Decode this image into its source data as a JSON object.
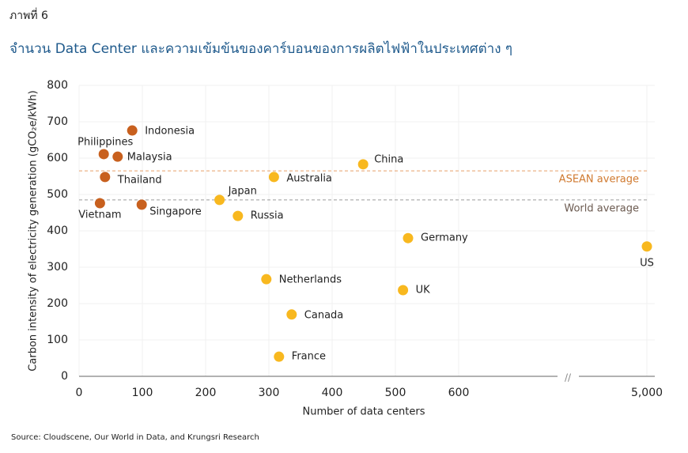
{
  "chart_data": {
    "type": "scatter",
    "figure_label": "ภาพที่ 6",
    "title": "จำนวน Data Center และความเข้มข้นของคาร์บอนของการผลิตไฟฟ้าในประเทศต่าง ๆ",
    "x_label": "Number of data centers",
    "y_label": "Carbon intensity of electricity generation (gCO₂e/kWh)",
    "source": "Source: Cloudscene, Our World in Data, and Krungsri Research",
    "xlim": [
      0,
      5050
    ],
    "x_break": [
      650,
      4950
    ],
    "x_break_label": "//",
    "ylim": [
      0,
      800
    ],
    "xticks": [
      0,
      100,
      200,
      300,
      400,
      500,
      600,
      {
        "value": 5000,
        "label": "5,000"
      }
    ],
    "yticks": [
      0,
      100,
      200,
      300,
      400,
      500,
      600,
      700,
      800
    ],
    "grid": true,
    "points": [
      {
        "label": "Indonesia",
        "x": 84,
        "y": 676,
        "color": "#c8601e"
      },
      {
        "label": "Philippines",
        "x": 39,
        "y": 611,
        "color": "#c8601e"
      },
      {
        "label": "Malaysia",
        "x": 61,
        "y": 604,
        "color": "#c8601e"
      },
      {
        "label": "Thailand",
        "x": 41,
        "y": 548,
        "color": "#c8601e"
      },
      {
        "label": "Vietnam",
        "x": 33,
        "y": 476,
        "color": "#c8601e"
      },
      {
        "label": "Singapore",
        "x": 99,
        "y": 472,
        "color": "#c8601e"
      },
      {
        "label": "Japan",
        "x": 222,
        "y": 485,
        "color": "#f8b81f"
      },
      {
        "label": "Russia",
        "x": 251,
        "y": 441,
        "color": "#f8b81f"
      },
      {
        "label": "Australia",
        "x": 308,
        "y": 548,
        "color": "#f8b81f"
      },
      {
        "label": "China",
        "x": 449,
        "y": 583,
        "color": "#f8b81f"
      },
      {
        "label": "Germany",
        "x": 520,
        "y": 380,
        "color": "#f8b81f"
      },
      {
        "label": "Netherlands",
        "x": 296,
        "y": 267,
        "color": "#f8b81f"
      },
      {
        "label": "UK",
        "x": 512,
        "y": 237,
        "color": "#f8b81f"
      },
      {
        "label": "Canada",
        "x": 336,
        "y": 170,
        "color": "#f8b81f"
      },
      {
        "label": "France",
        "x": 316,
        "y": 54,
        "color": "#f8b81f"
      },
      {
        "label": "US",
        "x": 5000,
        "y": 357,
        "color": "#f8b81f"
      }
    ],
    "reference_lines": [
      {
        "label": "ASEAN average",
        "y": 565,
        "color": "#e8a06a",
        "label_color": "#d07a30"
      },
      {
        "label": "World average",
        "y": 485,
        "color": "#9a9a9a",
        "label_color": "#6b5a50"
      }
    ]
  }
}
